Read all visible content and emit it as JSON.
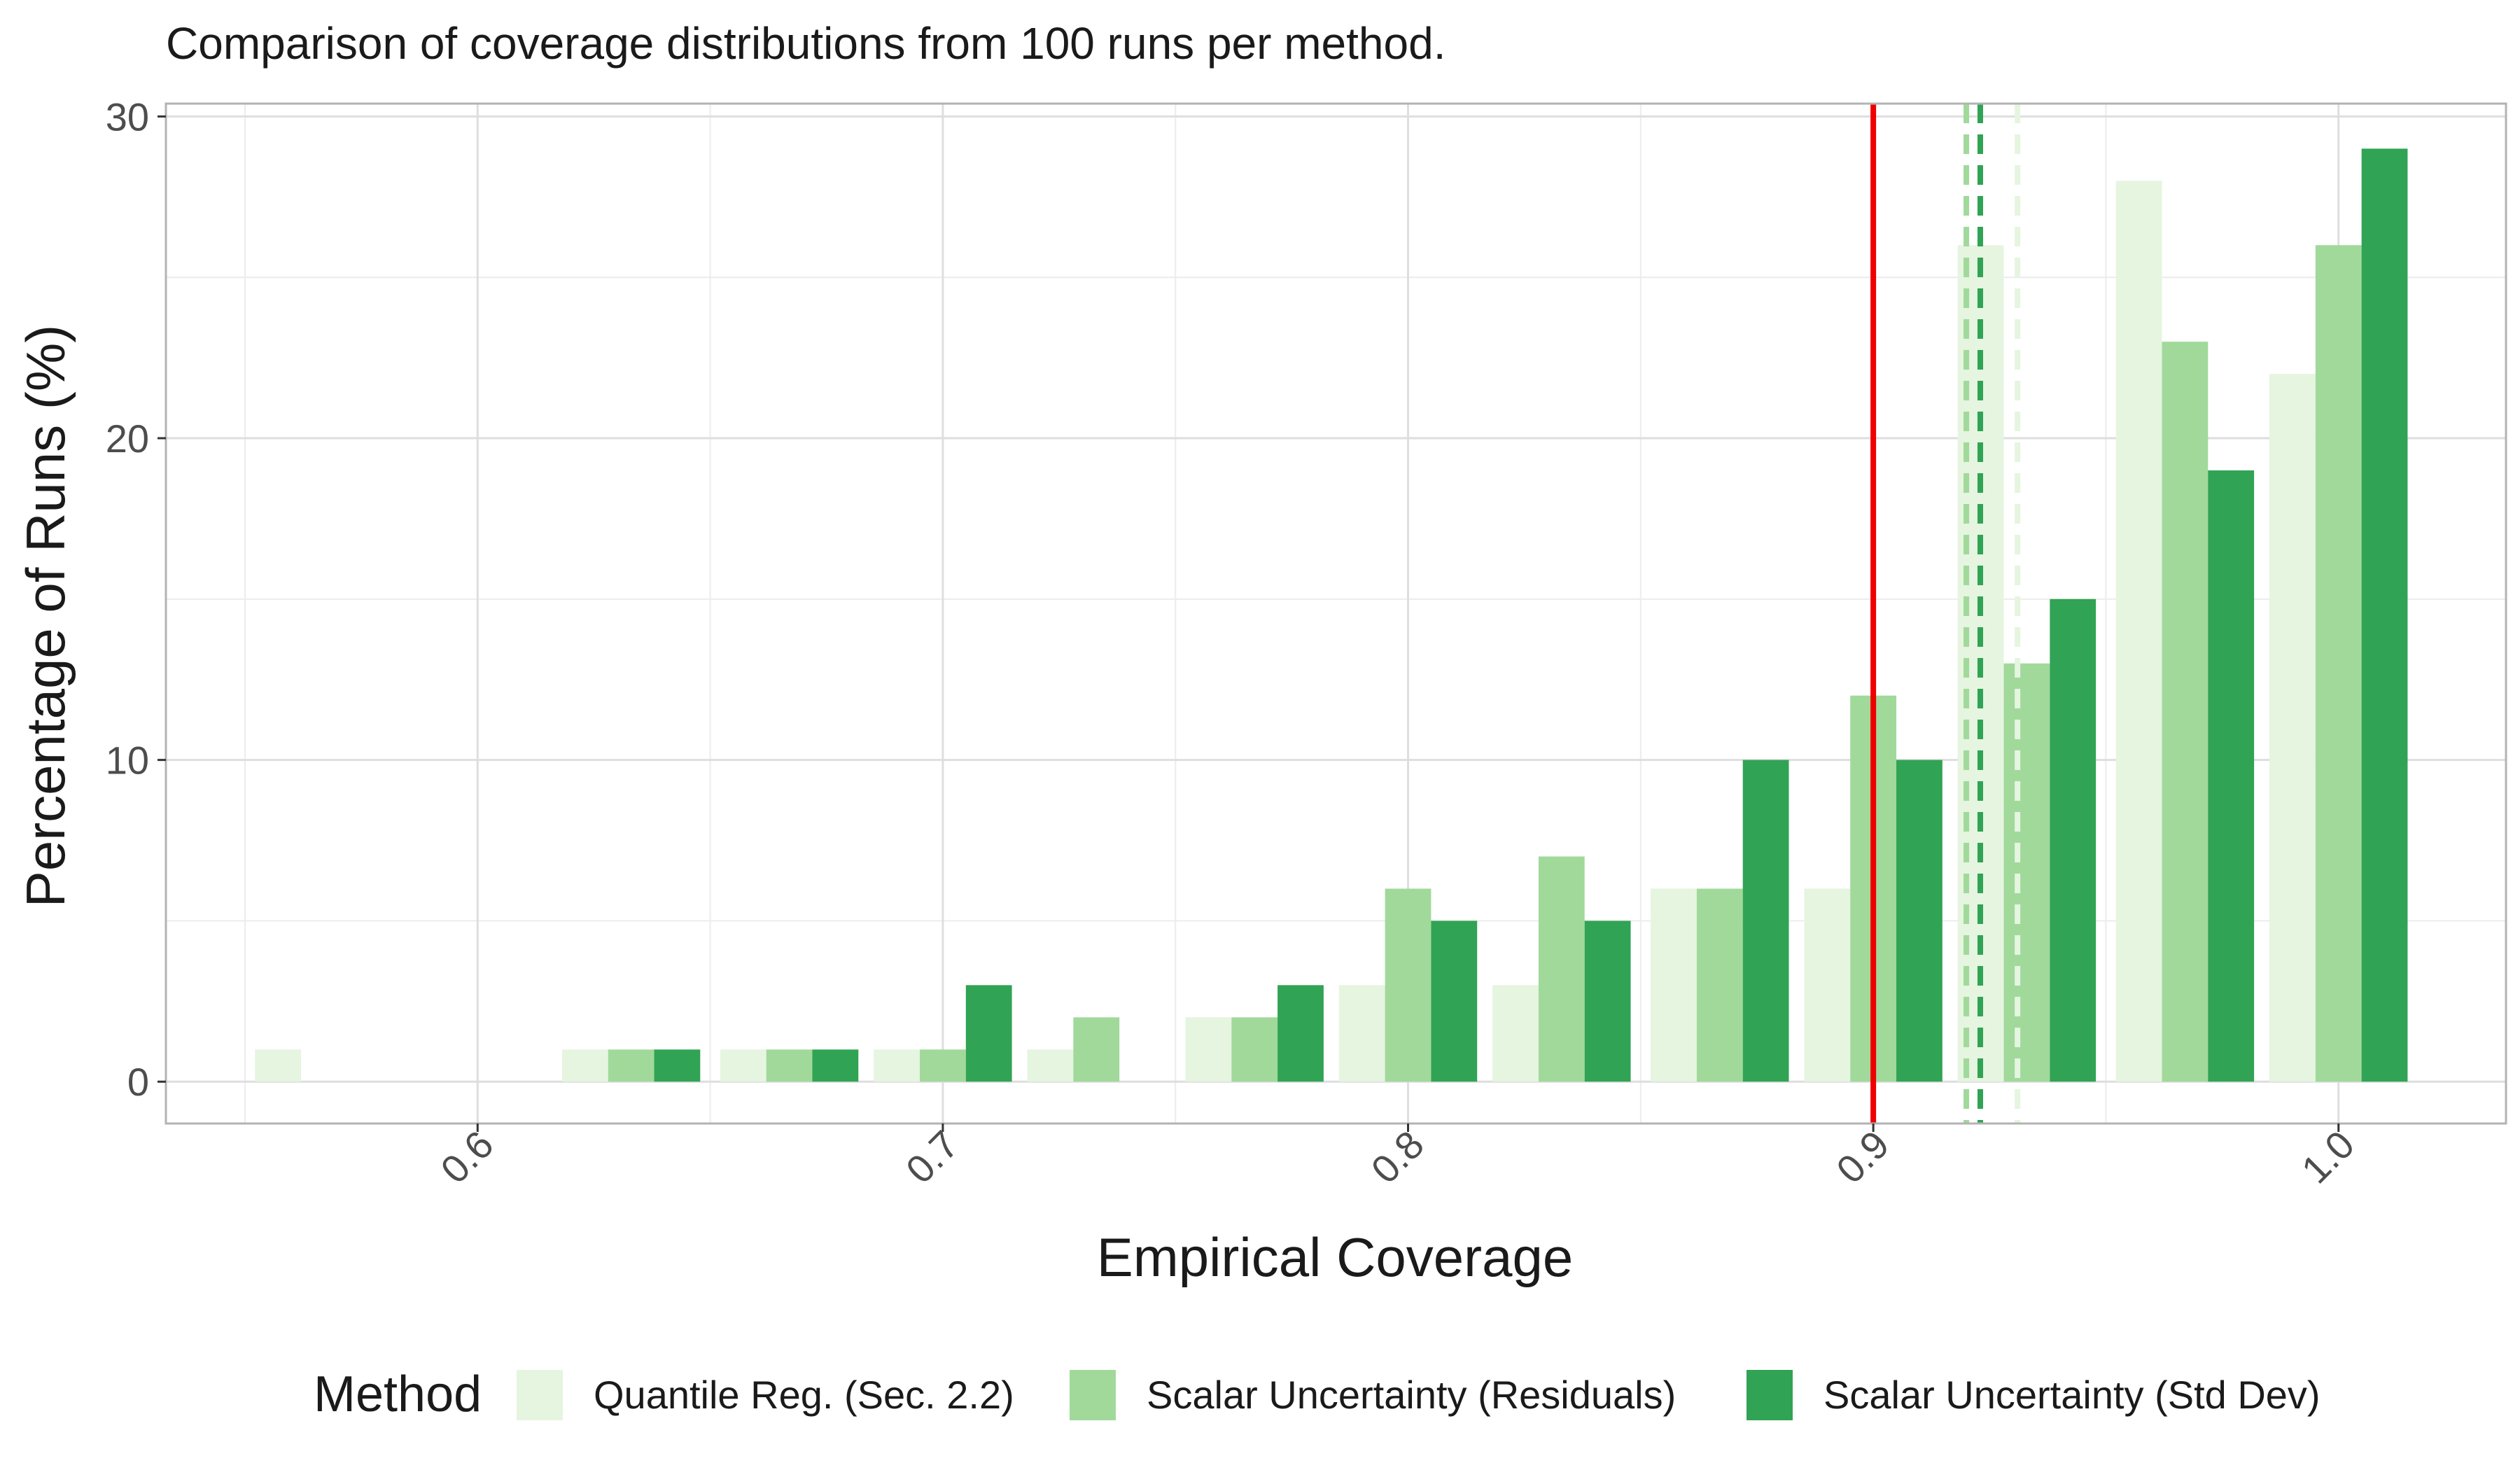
{
  "chart_data": {
    "type": "bar",
    "title": "Comparison of coverage distributions from 100 runs per method.",
    "xlabel": "Empirical Coverage",
    "ylabel": "Percentage of Runs (%)",
    "xlim": [
      0.533,
      1.036
    ],
    "ylim": [
      -1.3,
      30.4
    ],
    "x_ticks": [
      "0.6",
      "0.7",
      "0.8",
      "0.9",
      "1.0"
    ],
    "y_ticks": [
      "0",
      "10",
      "20",
      "30"
    ],
    "bin_centers": [
      0.567,
      0.6,
      0.633,
      0.667,
      0.7,
      0.733,
      0.767,
      0.8,
      0.833,
      0.867,
      0.9,
      0.933,
      0.967,
      1.0
    ],
    "series": [
      {
        "name": "Quantile Reg. (Sec. 2.2)",
        "color": "#e5f5e0",
        "values": [
          1,
          0,
          1,
          1,
          1,
          1,
          2,
          3,
          3,
          6,
          6,
          26,
          28,
          22
        ],
        "mean_line": 0.931
      },
      {
        "name": "Scalar Uncertainty (Residuals)",
        "color": "#a1d99b",
        "values": [
          0,
          0,
          1,
          1,
          1,
          2,
          2,
          6,
          7,
          6,
          12,
          13,
          23,
          26
        ],
        "mean_line": 0.92
      },
      {
        "name": "Scalar Uncertainty (Std Dev)",
        "color": "#31a354",
        "values": [
          0,
          0,
          1,
          1,
          3,
          0,
          3,
          5,
          5,
          10,
          10,
          15,
          19,
          29
        ],
        "mean_line": 0.923
      }
    ],
    "reference_line": {
      "value": 0.9,
      "color": "#ee0000"
    },
    "legend": {
      "title": "Method",
      "position": "bottom"
    },
    "grid": true
  }
}
